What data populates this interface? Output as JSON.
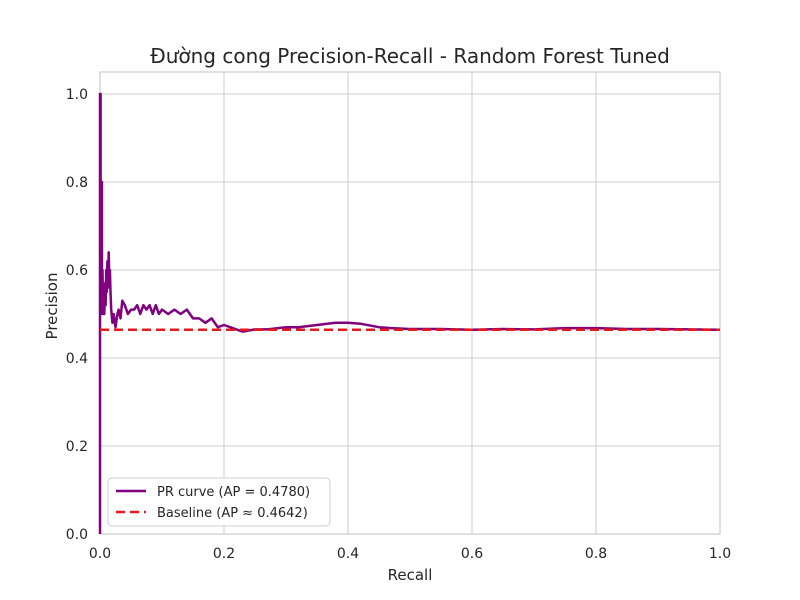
{
  "chart_data": {
    "type": "line",
    "title": "Đường cong Precision-Recall - Random Forest Tuned",
    "xlabel": "Recall",
    "ylabel": "Precision",
    "xlim": [
      0.0,
      1.0
    ],
    "ylim": [
      0.0,
      1.05
    ],
    "xticks": [
      "0.0",
      "0.2",
      "0.4",
      "0.6",
      "0.8",
      "1.0"
    ],
    "yticks": [
      "0.0",
      "0.2",
      "0.4",
      "0.6",
      "0.8",
      "1.0"
    ],
    "grid": true,
    "legend_position": "lower-left",
    "series": [
      {
        "name": "PR curve (AP = 0.4780)",
        "color": "#800080",
        "style": "solid",
        "x": [
          0.0,
          0.0,
          0.001,
          0.001,
          0.002,
          0.002,
          0.003,
          0.003,
          0.004,
          0.005,
          0.006,
          0.007,
          0.008,
          0.009,
          0.01,
          0.011,
          0.012,
          0.013,
          0.014,
          0.015,
          0.016,
          0.017,
          0.018,
          0.02,
          0.022,
          0.025,
          0.028,
          0.03,
          0.033,
          0.036,
          0.04,
          0.045,
          0.05,
          0.055,
          0.06,
          0.065,
          0.07,
          0.075,
          0.08,
          0.085,
          0.09,
          0.095,
          0.1,
          0.11,
          0.12,
          0.13,
          0.14,
          0.15,
          0.16,
          0.17,
          0.18,
          0.19,
          0.2,
          0.21,
          0.22,
          0.23,
          0.25,
          0.27,
          0.3,
          0.32,
          0.35,
          0.38,
          0.4,
          0.42,
          0.45,
          0.47,
          0.5,
          0.55,
          0.6,
          0.65,
          0.7,
          0.75,
          0.8,
          0.85,
          0.9,
          0.95,
          1.0
        ],
        "y": [
          0.0,
          1.0,
          1.0,
          0.5,
          0.5,
          0.8,
          0.8,
          0.6,
          0.6,
          0.5,
          0.55,
          0.5,
          0.57,
          0.52,
          0.6,
          0.55,
          0.62,
          0.56,
          0.64,
          0.58,
          0.6,
          0.55,
          0.51,
          0.48,
          0.5,
          0.47,
          0.5,
          0.51,
          0.49,
          0.53,
          0.52,
          0.5,
          0.51,
          0.51,
          0.52,
          0.5,
          0.52,
          0.51,
          0.52,
          0.5,
          0.52,
          0.5,
          0.51,
          0.5,
          0.51,
          0.5,
          0.51,
          0.49,
          0.49,
          0.48,
          0.49,
          0.47,
          0.475,
          0.47,
          0.465,
          0.46,
          0.465,
          0.465,
          0.47,
          0.47,
          0.475,
          0.48,
          0.48,
          0.478,
          0.47,
          0.468,
          0.466,
          0.466,
          0.464,
          0.466,
          0.465,
          0.468,
          0.468,
          0.466,
          0.466,
          0.465,
          0.464
        ]
      },
      {
        "name": "Baseline (AP ≈ 0.4642)",
        "color": "#e41a1c",
        "style": "dashed",
        "x": [
          0.0,
          1.0
        ],
        "y": [
          0.4642,
          0.4642
        ]
      }
    ]
  }
}
